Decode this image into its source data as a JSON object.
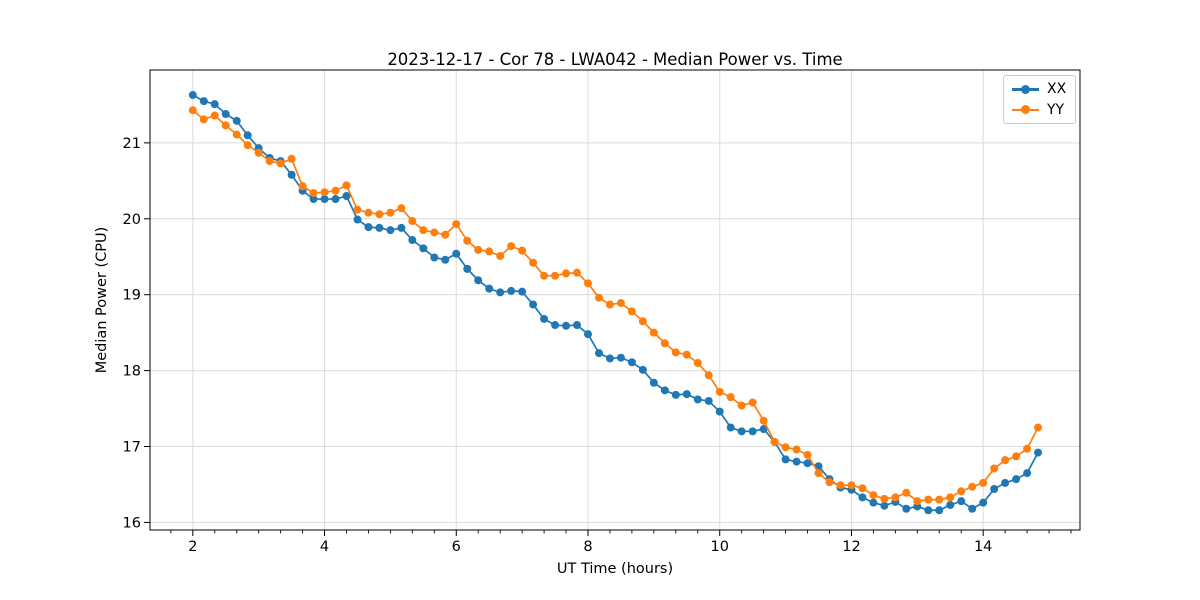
{
  "chart_data": {
    "type": "line",
    "title": "2023-12-17 - Cor 78 - LWA042 - Median Power vs. Time",
    "xlabel": "UT Time (hours)",
    "ylabel": "Median Power (CPU)",
    "x": [
      2.0,
      2.167,
      2.333,
      2.5,
      2.667,
      2.833,
      3.0,
      3.167,
      3.333,
      3.5,
      3.667,
      3.833,
      4.0,
      4.167,
      4.333,
      4.5,
      4.667,
      4.833,
      5.0,
      5.167,
      5.333,
      5.5,
      5.667,
      5.833,
      6.0,
      6.167,
      6.333,
      6.5,
      6.667,
      6.833,
      7.0,
      7.167,
      7.333,
      7.5,
      7.667,
      7.833,
      8.0,
      8.167,
      8.333,
      8.5,
      8.667,
      8.833,
      9.0,
      9.167,
      9.333,
      9.5,
      9.667,
      9.833,
      10.0,
      10.167,
      10.333,
      10.5,
      10.667,
      10.833,
      11.0,
      11.167,
      11.333,
      11.5,
      11.667,
      11.833,
      12.0,
      12.167,
      12.333,
      12.5,
      12.667,
      12.833,
      13.0,
      13.167,
      13.333,
      13.5,
      13.667,
      13.833,
      14.0,
      14.167,
      14.333,
      14.5,
      14.667,
      14.833
    ],
    "series": [
      {
        "name": "XX",
        "color": "#1f77b4",
        "marker": "circle",
        "values": [
          21.63,
          21.55,
          21.51,
          21.38,
          21.29,
          21.1,
          20.93,
          20.8,
          20.76,
          20.58,
          20.37,
          20.26,
          20.26,
          20.26,
          20.3,
          19.99,
          19.89,
          19.88,
          19.85,
          19.88,
          19.72,
          19.61,
          19.49,
          19.46,
          19.54,
          19.34,
          19.19,
          19.08,
          19.03,
          19.05,
          19.04,
          18.87,
          18.68,
          18.6,
          18.59,
          18.6,
          18.48,
          18.23,
          18.16,
          18.17,
          18.11,
          18.01,
          17.84,
          17.74,
          17.68,
          17.69,
          17.62,
          17.6,
          17.46,
          17.25,
          17.2,
          17.2,
          17.23,
          17.06,
          16.83,
          16.8,
          16.78,
          16.74,
          16.57,
          16.46,
          16.43,
          16.33,
          16.26,
          16.22,
          16.27,
          16.18,
          16.21,
          16.16,
          16.16,
          16.23,
          16.28,
          16.18,
          16.26,
          16.44,
          16.52,
          16.57,
          16.65,
          16.92
        ]
      },
      {
        "name": "YY",
        "color": "#ff7f0e",
        "marker": "circle",
        "values": [
          21.43,
          21.31,
          21.36,
          21.23,
          21.11,
          20.97,
          20.87,
          20.76,
          20.73,
          20.79,
          20.43,
          20.34,
          20.35,
          20.37,
          20.44,
          20.12,
          20.08,
          20.06,
          20.08,
          20.14,
          19.97,
          19.85,
          19.82,
          19.79,
          19.93,
          19.71,
          19.59,
          19.57,
          19.51,
          19.64,
          19.58,
          19.42,
          19.25,
          19.25,
          19.28,
          19.29,
          19.15,
          18.96,
          18.87,
          18.89,
          18.78,
          18.65,
          18.5,
          18.36,
          18.24,
          18.21,
          18.1,
          17.94,
          17.72,
          17.65,
          17.54,
          17.58,
          17.34,
          17.06,
          16.99,
          16.96,
          16.89,
          16.65,
          16.53,
          16.49,
          16.49,
          16.45,
          16.36,
          16.31,
          16.33,
          16.39,
          16.28,
          16.3,
          16.3,
          16.33,
          16.41,
          16.47,
          16.52,
          16.71,
          16.82,
          16.87,
          16.97,
          17.25
        ]
      }
    ],
    "xlim": [
      1.35,
      15.47
    ],
    "ylim": [
      15.9,
      21.96
    ],
    "xticks": [
      2,
      4,
      6,
      8,
      10,
      12,
      14
    ],
    "yticks": [
      16,
      17,
      18,
      19,
      20,
      21
    ],
    "x_minor_step": 0.33333,
    "grid": true,
    "grid_color": "#dcdcdc",
    "legend_position": "upper right"
  }
}
